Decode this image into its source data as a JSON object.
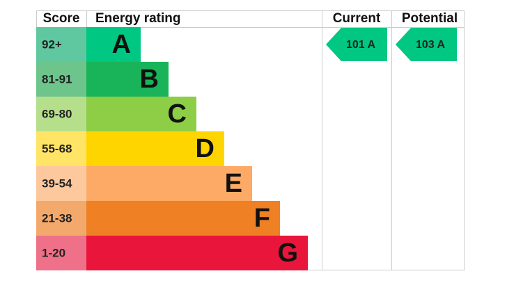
{
  "header": {
    "score": "Score",
    "rating": "Energy rating",
    "current": "Current",
    "potential": "Potential"
  },
  "rows": [
    {
      "score": "92+",
      "letter": "A"
    },
    {
      "score": "81-91",
      "letter": "B"
    },
    {
      "score": "69-80",
      "letter": "C"
    },
    {
      "score": "55-68",
      "letter": "D"
    },
    {
      "score": "39-54",
      "letter": "E"
    },
    {
      "score": "21-38",
      "letter": "F"
    },
    {
      "score": "1-20",
      "letter": "G"
    }
  ],
  "current": {
    "label": "101 A",
    "row": 0
  },
  "potential": {
    "label": "103 A",
    "row": 0
  }
}
